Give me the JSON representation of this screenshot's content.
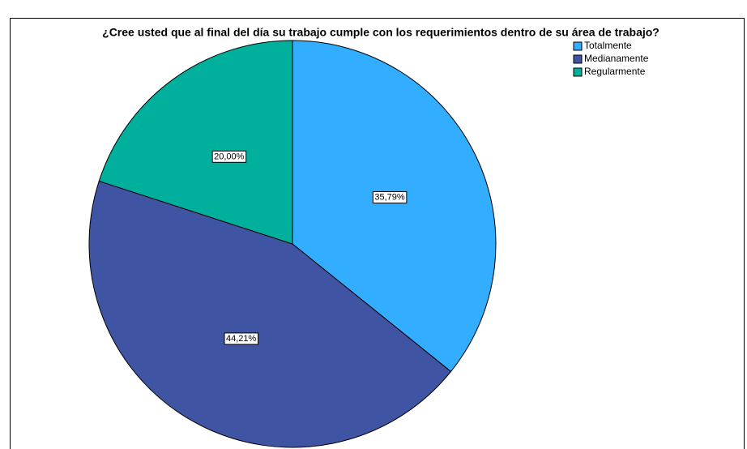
{
  "chart_data": {
    "type": "pie",
    "title": "¿Cree usted que al final del día su trabajo cumple con los requerimientos dentro de su área de trabajo?",
    "categories": [
      "Totalmente",
      "Medianamente",
      "Regularmente"
    ],
    "values": [
      35.79,
      44.21,
      20.0
    ],
    "value_labels": [
      "35,79%",
      "44,21%",
      "20,00%"
    ],
    "colors": [
      "#33adff",
      "#3f55a3",
      "#00b09c"
    ],
    "legend": "top-right"
  }
}
